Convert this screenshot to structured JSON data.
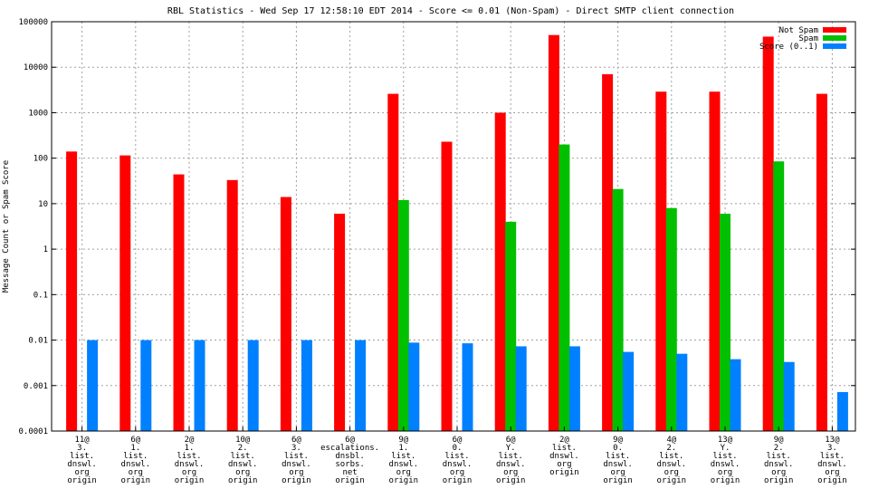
{
  "chart_data": {
    "type": "bar",
    "title": "RBL Statistics - Wed Sep 17 12:58:10 EDT 2014 - Score <= 0.01 (Non-Spam) - Direct SMTP client connection",
    "ylabel": "Message Count or Spam Score",
    "xlabel": "",
    "yscale": "log",
    "ylim": [
      0.0001,
      100000
    ],
    "yticks": [
      {
        "value": 100000,
        "label": "100000"
      },
      {
        "value": 10000,
        "label": "10000"
      },
      {
        "value": 1000,
        "label": "1000"
      },
      {
        "value": 100,
        "label": "100"
      },
      {
        "value": 10,
        "label": "10"
      },
      {
        "value": 1,
        "label": "1"
      },
      {
        "value": 0.1,
        "label": "0.1"
      },
      {
        "value": 0.01,
        "label": "0.01"
      },
      {
        "value": 0.001,
        "label": "0.001"
      },
      {
        "value": 0.0001,
        "label": "0.0001"
      }
    ],
    "grid": true,
    "legend_position": "top-right",
    "categories": [
      [
        "11@",
        "3.",
        "list.",
        "dnswl.",
        "org",
        "origin"
      ],
      [
        "6@",
        "1.",
        "list.",
        "dnswl.",
        "org",
        "origin"
      ],
      [
        "2@",
        "1.",
        "list.",
        "dnswl.",
        "org",
        "origin"
      ],
      [
        "10@",
        "2.",
        "list.",
        "dnswl.",
        "org",
        "origin"
      ],
      [
        "6@",
        "3.",
        "list.",
        "dnswl.",
        "org",
        "origin"
      ],
      [
        "6@",
        "escalations.",
        "dnsbl.",
        "sorbs.",
        "net",
        "origin"
      ],
      [
        "9@",
        "1.",
        "list.",
        "dnswl.",
        "org",
        "origin"
      ],
      [
        "6@",
        "0.",
        "list.",
        "dnswl.",
        "org",
        "origin"
      ],
      [
        "6@",
        "Y.",
        "list.",
        "dnswl.",
        "org",
        "origin"
      ],
      [
        "2@",
        "list.",
        "dnswl.",
        "org",
        "origin"
      ],
      [
        "9@",
        "0.",
        "list.",
        "dnswl.",
        "org",
        "origin"
      ],
      [
        "4@",
        "2.",
        "list.",
        "dnswl.",
        "org",
        "origin"
      ],
      [
        "13@",
        "Y.",
        "list.",
        "dnswl.",
        "org",
        "origin"
      ],
      [
        "9@",
        "2.",
        "list.",
        "dnswl.",
        "org",
        "origin"
      ],
      [
        "13@",
        "3.",
        "list.",
        "dnswl.",
        "org",
        "origin"
      ]
    ],
    "series": [
      {
        "name": "Not Spam",
        "color": "#ff0000",
        "values": [
          140,
          115,
          44,
          33,
          14,
          6,
          2600,
          230,
          1000,
          51000,
          7000,
          2900,
          2900,
          47000,
          2600
        ]
      },
      {
        "name": "Spam",
        "color": "#00c000",
        "values": [
          null,
          null,
          null,
          null,
          null,
          null,
          12,
          null,
          4,
          200,
          21,
          8,
          6,
          85,
          null
        ]
      },
      {
        "name": "Score (0..1)",
        "color": "#0080ff",
        "values": [
          0.01,
          0.01,
          0.01,
          0.01,
          0.01,
          0.01,
          0.0088,
          0.0085,
          0.0073,
          0.0073,
          0.0055,
          0.005,
          0.0038,
          0.0033,
          0.00072
        ]
      }
    ]
  }
}
